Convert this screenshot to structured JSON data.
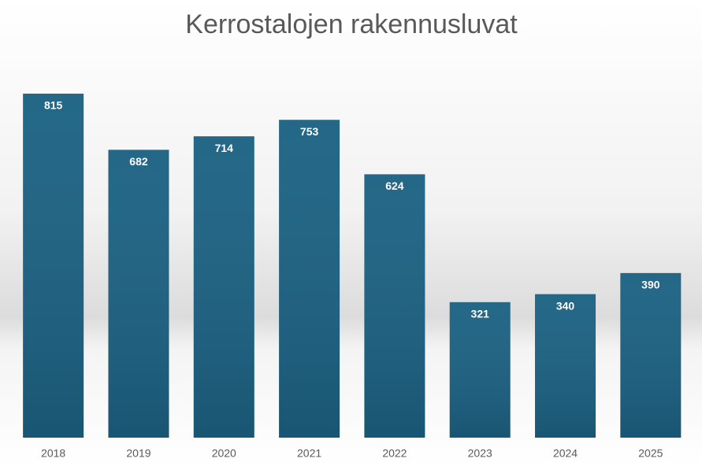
{
  "chart_data": {
    "type": "bar",
    "title": "Kerrostalojen rakennusluvat",
    "categories": [
      "2018",
      "2019",
      "2020",
      "2021",
      "2022",
      "2023",
      "2024",
      "2025"
    ],
    "values": [
      815,
      682,
      714,
      753,
      624,
      321,
      340,
      390
    ],
    "color": "#1b6182"
  }
}
